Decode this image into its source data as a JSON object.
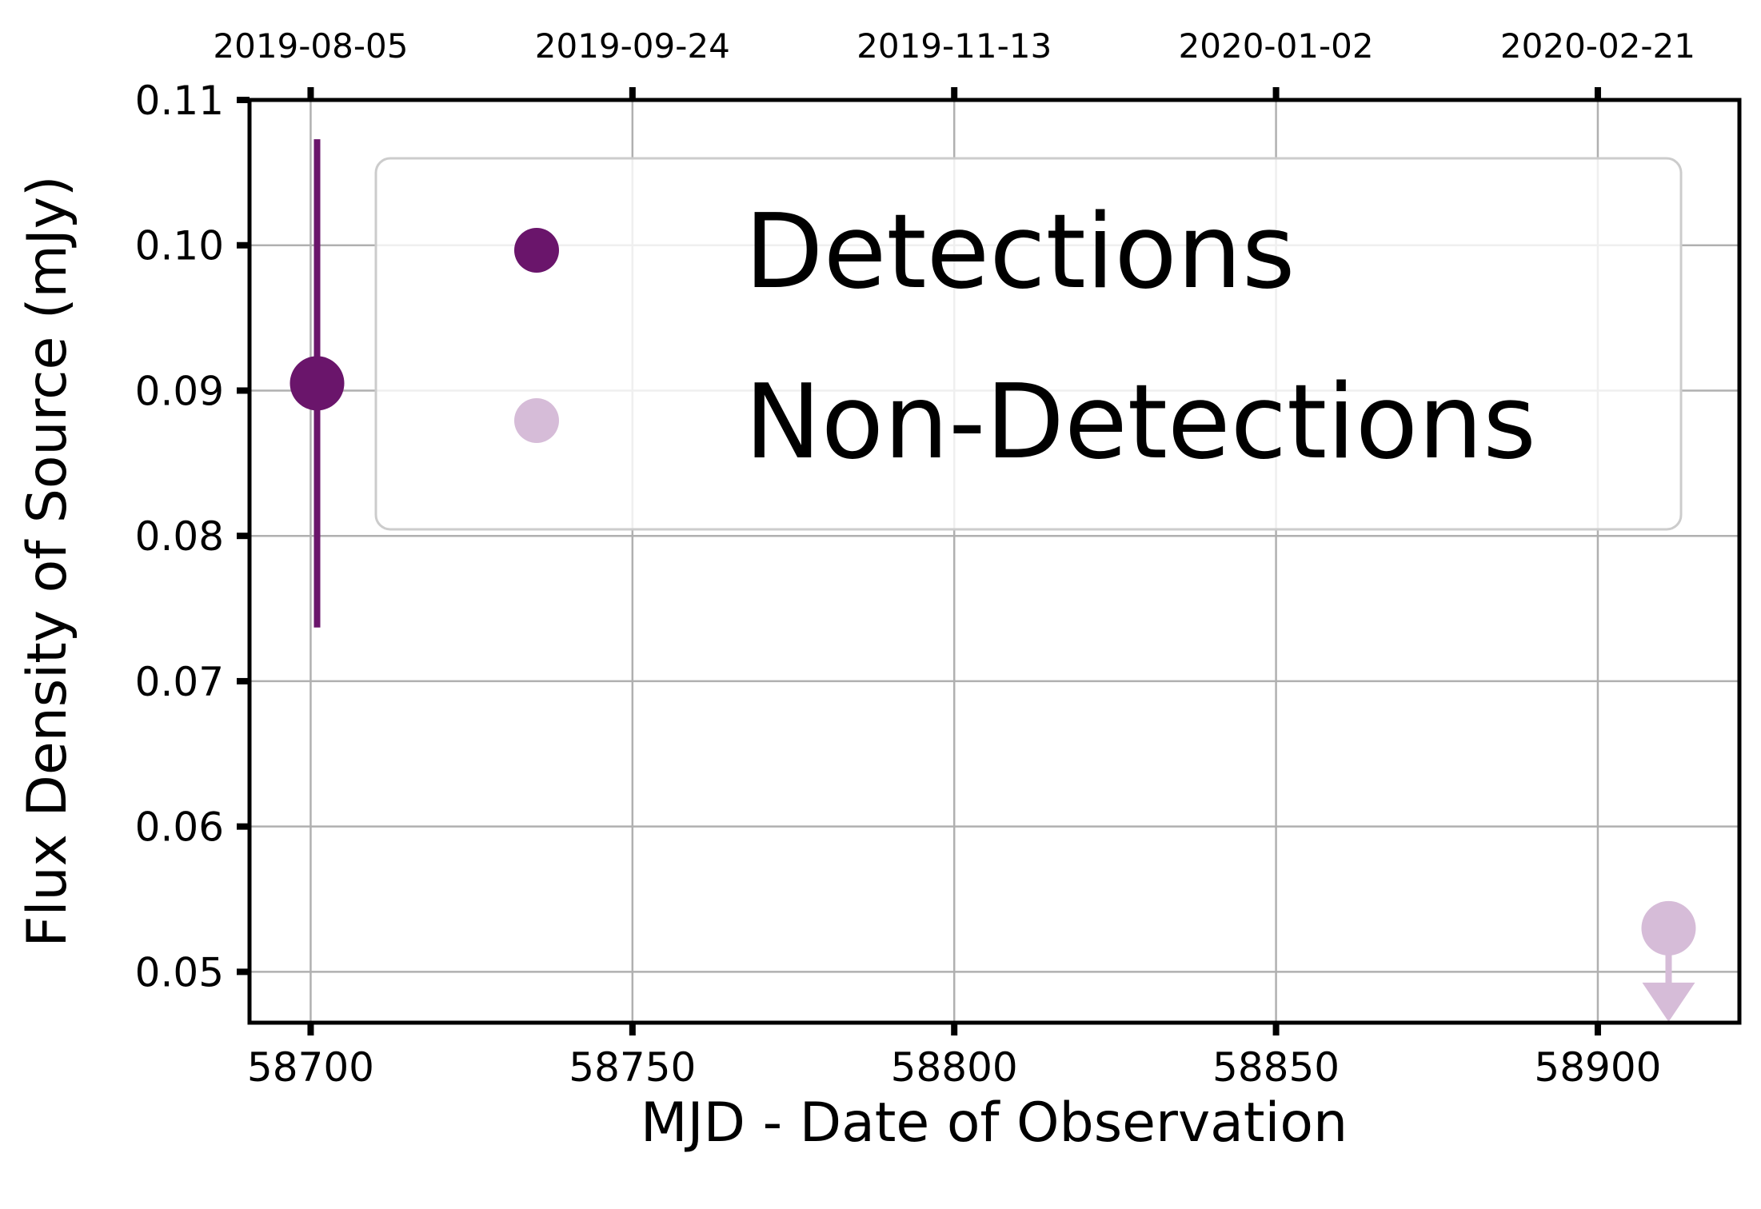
{
  "chart_data": {
    "type": "scatter",
    "title": "",
    "xlabel": "MJD - Date of Observation",
    "ylabel": "Flux Density of Source (mJy)",
    "xlim": [
      58690.5,
      58922
    ],
    "ylim": [
      0.0465,
      0.11
    ],
    "grid": true,
    "x_ticks": [
      58700,
      58750,
      58800,
      58850,
      58900
    ],
    "x_tick_labels": [
      "58700",
      "58750",
      "58800",
      "58850",
      "58900"
    ],
    "y_ticks": [
      0.05,
      0.06,
      0.07,
      0.08,
      0.09,
      0.1,
      0.11
    ],
    "y_tick_labels": [
      "0.05",
      "0.06",
      "0.07",
      "0.08",
      "0.09",
      "0.10",
      "0.11"
    ],
    "top_axis": {
      "ticks": [
        58700,
        58750,
        58800,
        58850,
        58900
      ],
      "labels": [
        "2019-08-05",
        "2019-09-24",
        "2019-11-13",
        "2020-01-02",
        "2020-02-21"
      ]
    },
    "legend": {
      "placement": "upper-right"
    },
    "series": [
      {
        "name": "Detections",
        "color": "#6a156b",
        "points": [
          {
            "x": 58701,
            "y": 0.0905,
            "yerr_low": 0.0737,
            "yerr_high": 0.1073
          }
        ]
      },
      {
        "name": "Non-Detections",
        "color": "#d6bcd8",
        "upper_limit": true,
        "points": [
          {
            "x": 58911,
            "y": 0.053
          }
        ]
      }
    ]
  }
}
